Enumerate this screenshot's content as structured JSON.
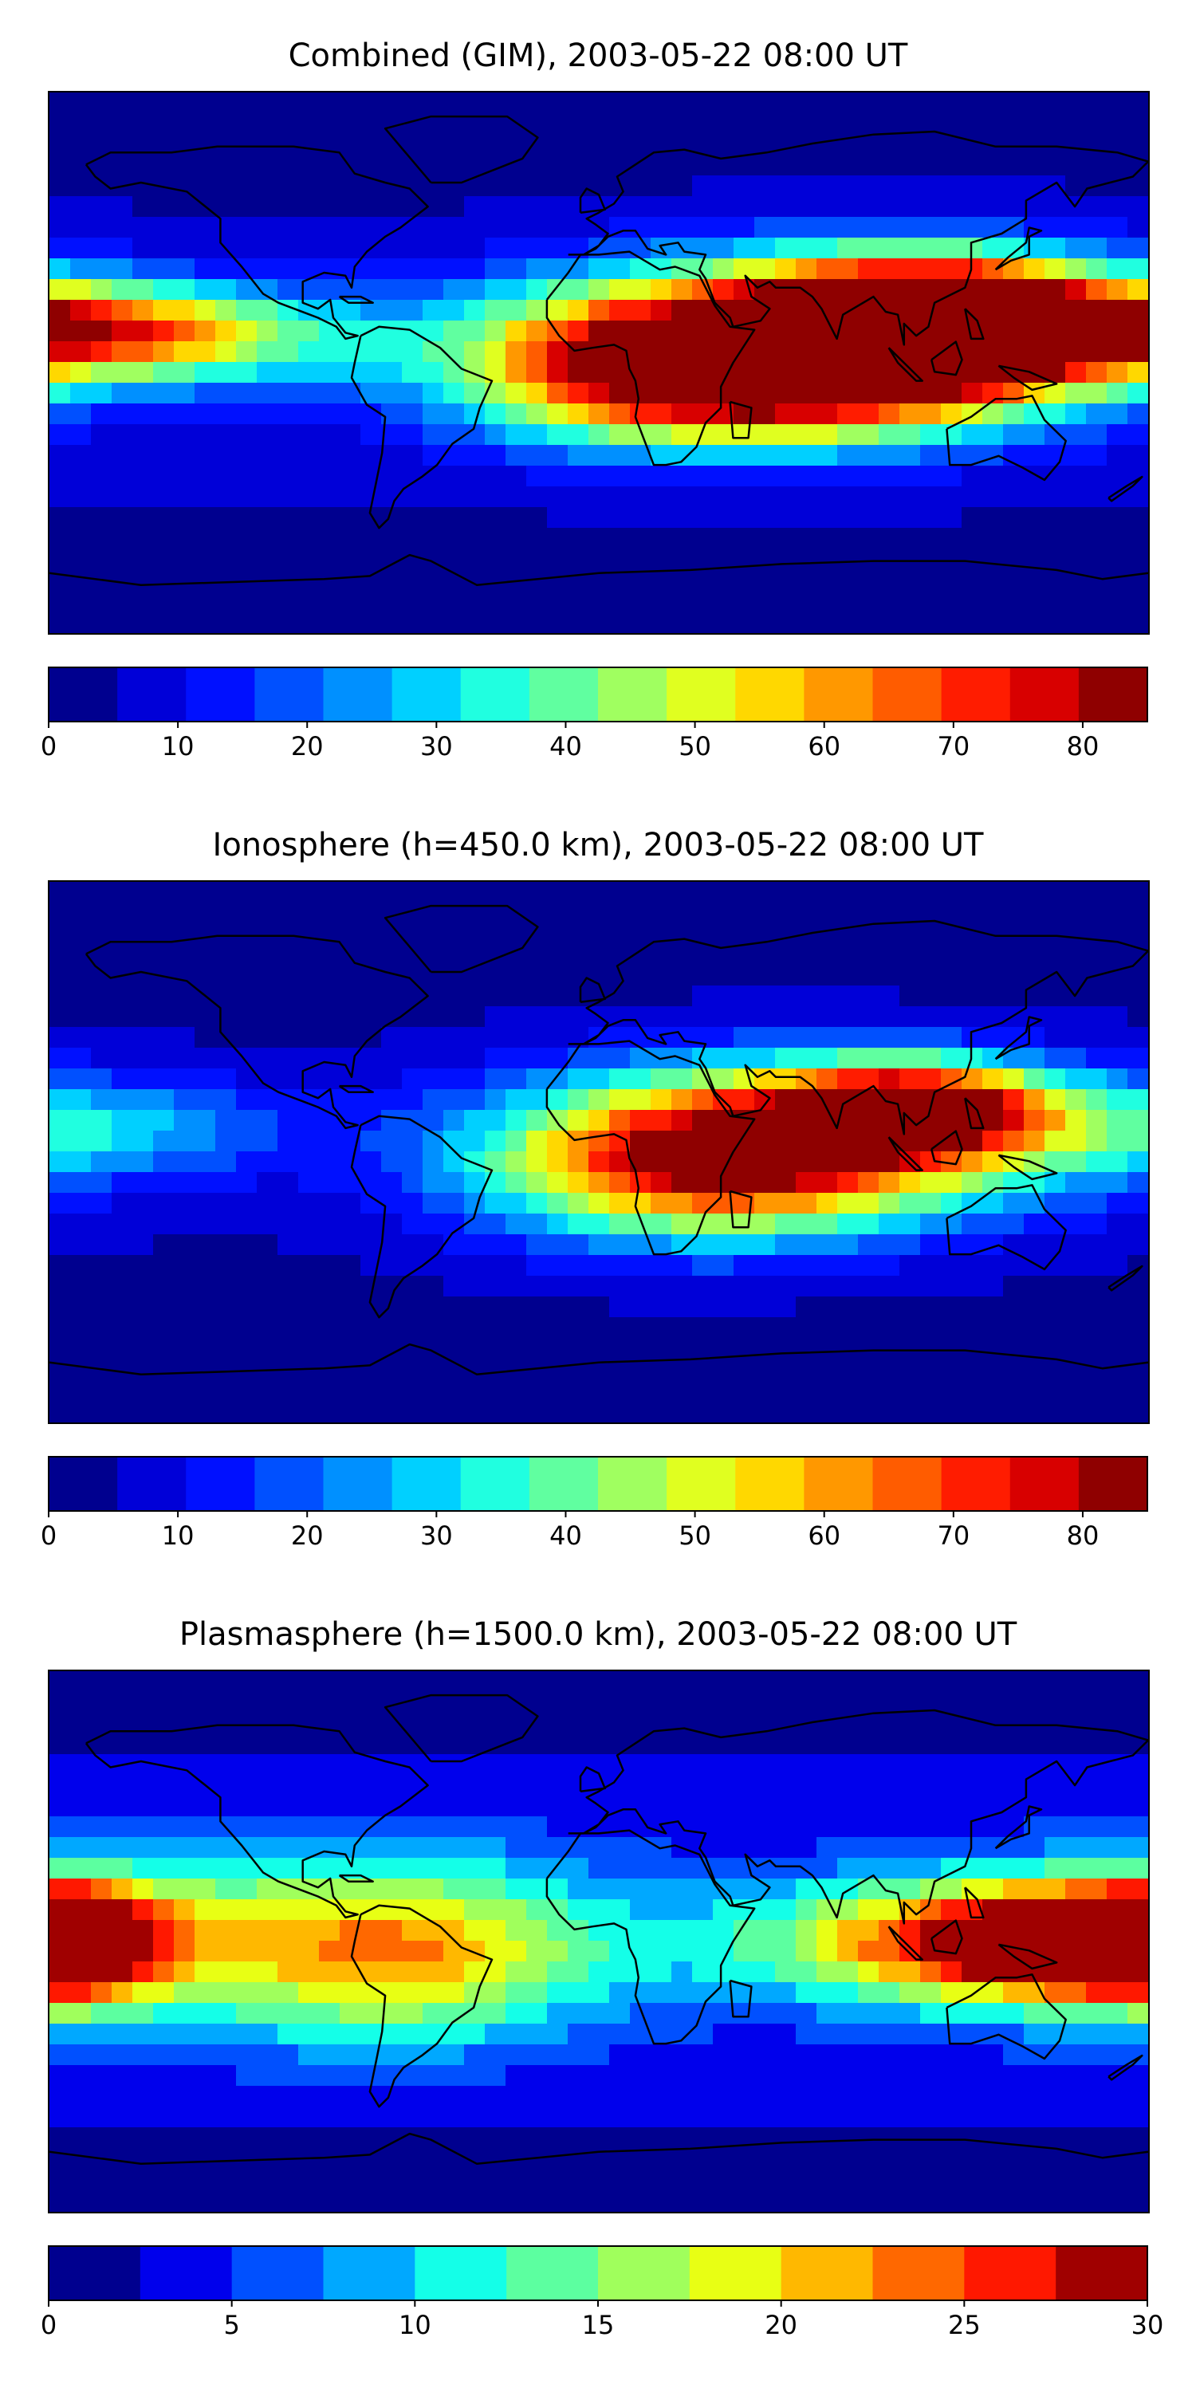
{
  "colors": {
    "combined_levels": [
      "#00008f",
      "#0000d8",
      "#0010ff",
      "#0050ff",
      "#0090ff",
      "#00d0ff",
      "#20ffe0",
      "#60ffa0",
      "#a0ff60",
      "#e0ff20",
      "#ffd800",
      "#ff9800",
      "#ff5c00",
      "#ff1c00",
      "#d80000",
      "#8f0000"
    ],
    "plasma_levels": [
      "#00008f",
      "#0000ec",
      "#0050ff",
      "#00a8ff",
      "#14ffe8",
      "#5cffa0",
      "#a0ff5c",
      "#e8ff14",
      "#ffb800",
      "#ff6800",
      "#ff1800",
      "#a00000"
    ],
    "coastline": "#000000"
  },
  "chart_data": [
    {
      "type": "heatmap",
      "title": "Combined (GIM), 2003-05-22 08:00 UT",
      "colorbar": {
        "ticks": [
          0,
          10,
          20,
          30,
          40,
          50,
          60,
          70,
          80
        ],
        "tick_labels": [
          "0",
          "10",
          "20",
          "30",
          "40",
          "50",
          "60",
          "70",
          "80"
        ],
        "range": [
          0,
          85
        ],
        "level_step": 5
      },
      "features": [
        {
          "lon": 110,
          "lat": 15,
          "value": 72,
          "spread_lon": 40,
          "spread_lat": 14
        },
        {
          "lon": 90,
          "lat": 8,
          "value": 62,
          "spread_lon": 55,
          "spread_lat": 18
        },
        {
          "lon": 40,
          "lat": -10,
          "value": 48,
          "spread_lon": 55,
          "spread_lat": 14
        },
        {
          "lon": 10,
          "lat": 8,
          "value": 38,
          "spread_lon": 40,
          "spread_lat": 16
        },
        {
          "lon": -165,
          "lat": 12,
          "value": 32,
          "spread_lon": 40,
          "spread_lat": 10
        },
        {
          "lon": -140,
          "lat": 8,
          "value": 26,
          "spread_lon": 60,
          "spread_lat": 12
        }
      ],
      "background": 8
    },
    {
      "type": "heatmap",
      "title": "Ionosphere  (h=450.0 km), 2003-05-22 08:00 UT",
      "colorbar": {
        "ticks": [
          0,
          10,
          20,
          30,
          40,
          50,
          60,
          70,
          80
        ],
        "tick_labels": [
          "0",
          "10",
          "20",
          "30",
          "40",
          "50",
          "60",
          "70",
          "80"
        ],
        "range": [
          0,
          85
        ],
        "level_step": 5
      },
      "features": [
        {
          "lon": 105,
          "lat": 15,
          "value": 56,
          "spread_lon": 30,
          "spread_lat": 10
        },
        {
          "lon": 70,
          "lat": 5,
          "value": 50,
          "spread_lon": 60,
          "spread_lat": 18
        },
        {
          "lon": 30,
          "lat": -5,
          "value": 44,
          "spread_lon": 50,
          "spread_lat": 18
        },
        {
          "lon": -165,
          "lat": 8,
          "value": 20,
          "spread_lon": 45,
          "spread_lat": 12
        }
      ],
      "background": 6
    },
    {
      "type": "heatmap",
      "title": "Plasmasphere (h=1500.0 km), 2003-05-22 08:00 UT",
      "colorbar": {
        "ticks": [
          0,
          5,
          10,
          15,
          20,
          25,
          30
        ],
        "tick_labels": [
          "0",
          "5",
          "10",
          "15",
          "20",
          "25",
          "30"
        ],
        "range": [
          0,
          30
        ],
        "level_step": 2.5
      },
      "features": [
        {
          "lon": -175,
          "lat": 0,
          "value": 21,
          "spread_lon": 18,
          "spread_lat": 12
        },
        {
          "lon": 160,
          "lat": 0,
          "value": 20,
          "spread_lon": 35,
          "spread_lat": 12
        },
        {
          "lon": 115,
          "lat": 0,
          "value": 16,
          "spread_lon": 50,
          "spread_lat": 14
        },
        {
          "lon": -120,
          "lat": 0,
          "value": 11,
          "spread_lon": 80,
          "spread_lat": 22
        },
        {
          "lon": -60,
          "lat": -5,
          "value": 10,
          "spread_lon": 40,
          "spread_lat": 20
        }
      ],
      "background": 5
    }
  ]
}
